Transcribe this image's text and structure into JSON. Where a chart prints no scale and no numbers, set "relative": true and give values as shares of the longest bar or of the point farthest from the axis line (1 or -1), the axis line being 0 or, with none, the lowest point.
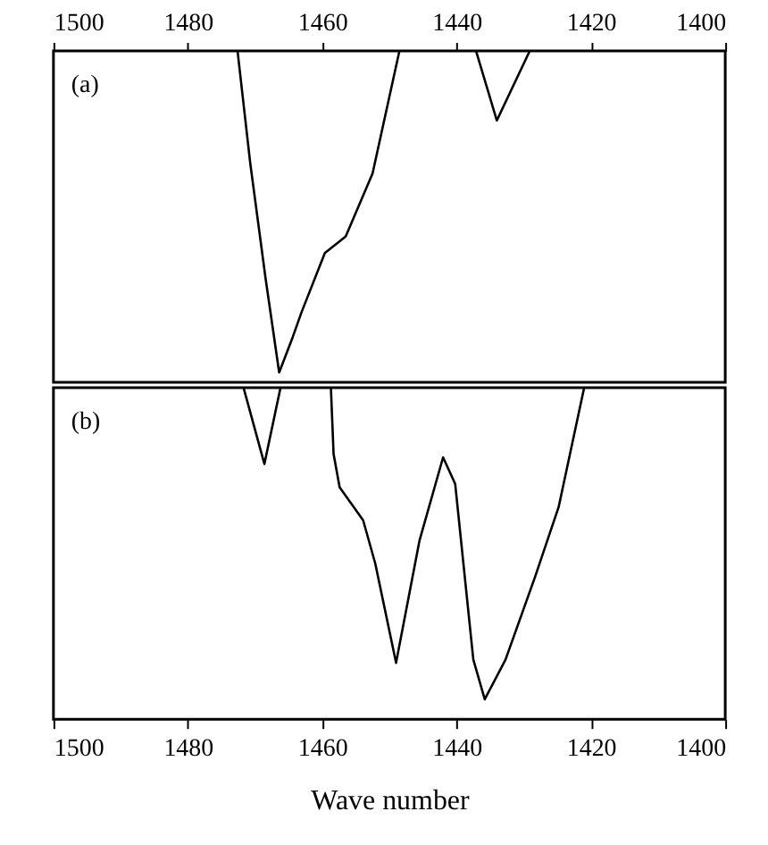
{
  "chart_data": [
    {
      "type": "line",
      "relative": true,
      "xlim": [
        1500,
        1400
      ],
      "xticks": [
        1500,
        1480,
        1460,
        1440,
        1420,
        1400
      ],
      "tick_labels": "x",
      "grid": false,
      "annotations": [
        "(a)"
      ],
      "series": [
        {
          "color": "#000000",
          "x": [
            1472.6,
            1470.7,
            1468.4,
            1466.4,
            1464.5,
            1463.1,
            1459.6,
            1456.5,
            1452.5,
            1448.5
          ],
          "values": [
            1,
            0.66,
            0.31,
            0.03,
            0.13,
            0.21,
            0.39,
            0.44,
            0.63,
            1
          ]
        },
        {
          "color": "#000000",
          "x": [
            1437.1,
            1434.0,
            1429.1
          ],
          "values": [
            1,
            0.79,
            1
          ]
        }
      ]
    },
    {
      "type": "line",
      "relative": true,
      "xlim": [
        1500,
        1400
      ],
      "xticks": [
        1500,
        1480,
        1460,
        1440,
        1420,
        1400
      ],
      "xlabel": "Wave number",
      "tick_labels": "x",
      "grid": false,
      "annotations": [
        "(b)"
      ],
      "series": [
        {
          "color": "#000000",
          "x": [
            1471.7,
            1468.6,
            1466.2
          ],
          "values": [
            1,
            0.77,
            1
          ]
        },
        {
          "color": "#000000",
          "x": [
            1458.7,
            1458.3,
            1457.4,
            1453.9,
            1452.1,
            1449.0,
            1445.5,
            1442.0,
            1440.2,
            1437.5,
            1435.8,
            1432.7,
            1428.3,
            1424.8,
            1421.0
          ],
          "values": [
            1,
            0.8,
            0.7,
            0.6,
            0.47,
            0.17,
            0.54,
            0.79,
            0.71,
            0.18,
            0.06,
            0.18,
            0.43,
            0.64,
            1
          ]
        }
      ]
    }
  ]
}
